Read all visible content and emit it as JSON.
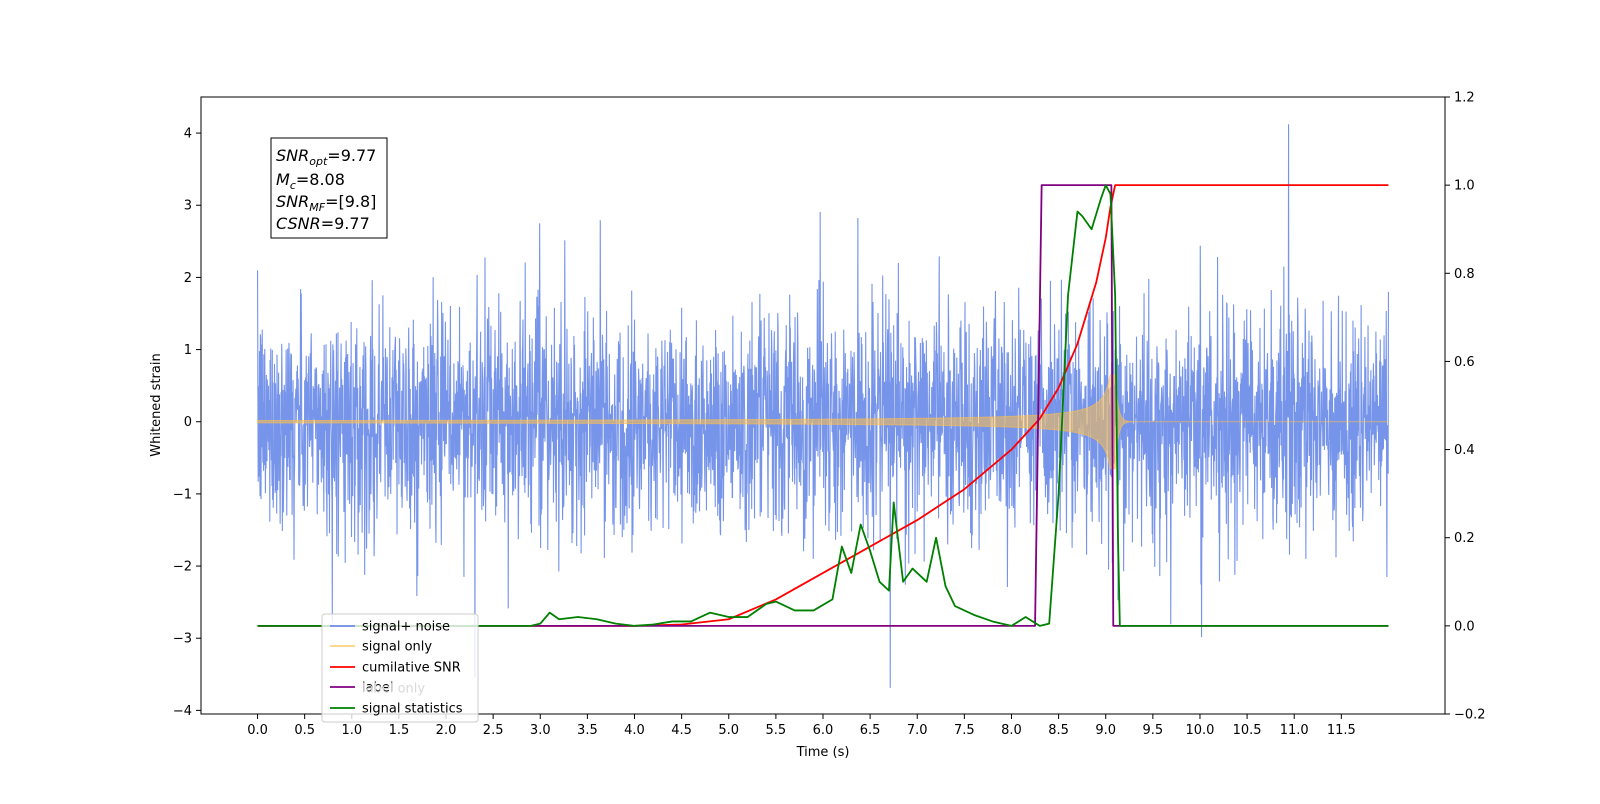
{
  "chart_data": {
    "type": "line",
    "xlabel": "Time (s)",
    "ylabel_left": "Whitened strain",
    "ylabel_right": "",
    "xlim": [
      -0.6,
      12.6
    ],
    "ylim_left": [
      -4.05,
      4.5
    ],
    "ylim_right": [
      -0.2,
      1.2
    ],
    "x_ticks": [
      "0.0",
      "0.5",
      "1.0",
      "1.5",
      "2.0",
      "2.5",
      "3.0",
      "3.5",
      "4.0",
      "4.5",
      "5.0",
      "5.5",
      "6.0",
      "6.5",
      "7.0",
      "7.5",
      "8.0",
      "8.5",
      "9.0",
      "9.5",
      "10.0",
      "10.5",
      "11.0",
      "11.5"
    ],
    "y_ticks_left": [
      "−4",
      "−3",
      "−2",
      "−1",
      "0",
      "1",
      "2",
      "3",
      "4"
    ],
    "y_ticks_right": [
      "−0.2",
      "0.0",
      "0.2",
      "0.4",
      "0.6",
      "0.8",
      "1.0",
      "1.2"
    ],
    "grid": false,
    "legend_placement": "lower-left",
    "annotation": {
      "lines": [
        {
          "sym": "SNR",
          "sub": "opt",
          "val": "=9.77"
        },
        {
          "sym": "M",
          "sub": "c",
          "val": "=8.08"
        },
        {
          "sym": "SNR",
          "sub": "MF",
          "val": "=[9.8]"
        },
        {
          "sym": "CSNR",
          "sub": "",
          "val": "=9.77"
        }
      ]
    },
    "series": [
      {
        "name": "signal+ noise",
        "color": "#6f8ee8",
        "axis": "left",
        "description_values": {
          "noise_std": 0.75,
          "t_start": 0.0,
          "t_end": 12.0
        }
      },
      {
        "name": "signal only",
        "color": "#ffc04d",
        "axis": "left",
        "description_values": {
          "peak_time": 9.1,
          "peak_amplitude": 0.65
        }
      },
      {
        "name": "cumilative SNR",
        "color": "#ff0000",
        "axis": "right",
        "x": [
          0.0,
          4.0,
          4.5,
          5.0,
          5.5,
          6.0,
          6.5,
          7.0,
          7.5,
          8.0,
          8.3,
          8.5,
          8.7,
          8.9,
          9.0,
          9.05,
          9.1,
          9.15,
          12.0
        ],
        "y": [
          0.0,
          0.0,
          0.003,
          0.015,
          0.06,
          0.12,
          0.18,
          0.24,
          0.31,
          0.4,
          0.47,
          0.54,
          0.64,
          0.78,
          0.88,
          0.95,
          1.0,
          1.0,
          1.0
        ]
      },
      {
        "name": "label",
        "color": "#800080",
        "axis": "right",
        "x": [
          0.0,
          8.25,
          8.32,
          9.06,
          9.08,
          12.0
        ],
        "y": [
          0.0,
          0.0,
          1.0,
          1.0,
          0.0,
          0.0
        ]
      },
      {
        "name": "label only",
        "color": "#d9d9d9",
        "axis": "right",
        "x": [],
        "y": []
      },
      {
        "name": "signal statistics",
        "color": "#008000",
        "axis": "right",
        "x": [
          0.0,
          2.9,
          3.0,
          3.1,
          3.2,
          3.4,
          3.6,
          3.8,
          4.0,
          4.2,
          4.4,
          4.6,
          4.8,
          5.0,
          5.2,
          5.4,
          5.5,
          5.7,
          5.9,
          6.1,
          6.2,
          6.3,
          6.4,
          6.5,
          6.6,
          6.7,
          6.75,
          6.85,
          6.95,
          7.1,
          7.2,
          7.3,
          7.4,
          7.6,
          7.8,
          8.0,
          8.15,
          8.3,
          8.4,
          8.5,
          8.6,
          8.7,
          8.75,
          8.85,
          8.95,
          9.0,
          9.05,
          9.1,
          9.13,
          9.15,
          12.0
        ],
        "y": [
          0.0,
          0.0,
          0.005,
          0.03,
          0.015,
          0.02,
          0.015,
          0.005,
          0.0,
          0.003,
          0.01,
          0.01,
          0.03,
          0.02,
          0.02,
          0.05,
          0.055,
          0.035,
          0.035,
          0.06,
          0.18,
          0.12,
          0.23,
          0.17,
          0.1,
          0.08,
          0.28,
          0.1,
          0.13,
          0.1,
          0.2,
          0.09,
          0.045,
          0.025,
          0.01,
          0.0,
          0.02,
          0.0,
          0.005,
          0.3,
          0.75,
          0.94,
          0.93,
          0.9,
          0.97,
          1.0,
          0.98,
          0.75,
          0.2,
          0.0,
          0.0
        ]
      }
    ]
  }
}
